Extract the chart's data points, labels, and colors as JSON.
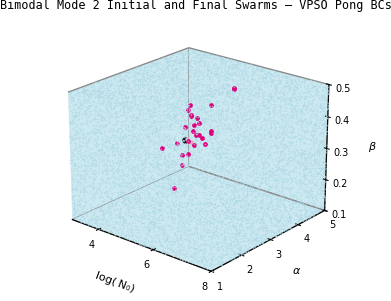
{
  "title": "Bimodal Mode 2 Initial and Final Swarms – VPSO Pong BCs",
  "xlabel": "log( N₀)",
  "ylabel": "α",
  "zlabel": "β",
  "xlim": [
    3,
    8
  ],
  "ylim": [
    1,
    5
  ],
  "zlim": [
    0.1,
    0.5
  ],
  "xticks": [
    4,
    6,
    8
  ],
  "yticks": [
    1,
    2,
    3,
    4,
    5
  ],
  "zticks": [
    0.1,
    0.2,
    0.3,
    0.4,
    0.5
  ],
  "magenta_points": [
    [
      5.2,
      2.8,
      0.38
    ],
    [
      5.5,
      2.9,
      0.36
    ],
    [
      5.3,
      3.1,
      0.4
    ],
    [
      5.0,
      2.7,
      0.33
    ],
    [
      5.6,
      3.0,
      0.35
    ],
    [
      5.4,
      2.8,
      0.42
    ],
    [
      5.1,
      3.2,
      0.37
    ],
    [
      5.7,
      2.6,
      0.39
    ],
    [
      5.2,
      3.0,
      0.41
    ],
    [
      5.8,
      2.9,
      0.34
    ],
    [
      5.3,
      2.8,
      0.3
    ],
    [
      5.0,
      3.1,
      0.32
    ],
    [
      5.6,
      3.3,
      0.44
    ],
    [
      5.4,
      2.5,
      0.28
    ],
    [
      5.5,
      2.7,
      0.46
    ],
    [
      5.9,
      3.0,
      0.38
    ],
    [
      5.2,
      2.9,
      0.43
    ],
    [
      5.7,
      3.2,
      0.36
    ],
    [
      5.0,
      2.6,
      0.19
    ],
    [
      4.8,
      2.4,
      0.32
    ],
    [
      6.2,
      3.5,
      0.5
    ],
    [
      5.9,
      3.8,
      0.48
    ],
    [
      5.3,
      3.0,
      0.32
    ],
    [
      5.1,
      2.8,
      0.29
    ],
    [
      5.4,
      3.1,
      0.35
    ],
    [
      5.6,
      2.9,
      0.4
    ]
  ],
  "black_point": [
    5.15,
    2.85,
    0.335
  ],
  "light_pink_points": [
    [
      5.25,
      2.95,
      0.33
    ],
    [
      5.18,
      2.88,
      0.34
    ]
  ],
  "magenta_color": "#e0007f",
  "black_color": "#000000",
  "light_pink_color": "#f0a0c0",
  "pane_color": "#cce8f0",
  "noise_color": "#add8e6",
  "title_fontsize": 8.5,
  "axis_label_fontsize": 8,
  "tick_fontsize": 7,
  "elev": 22,
  "azim": -50
}
